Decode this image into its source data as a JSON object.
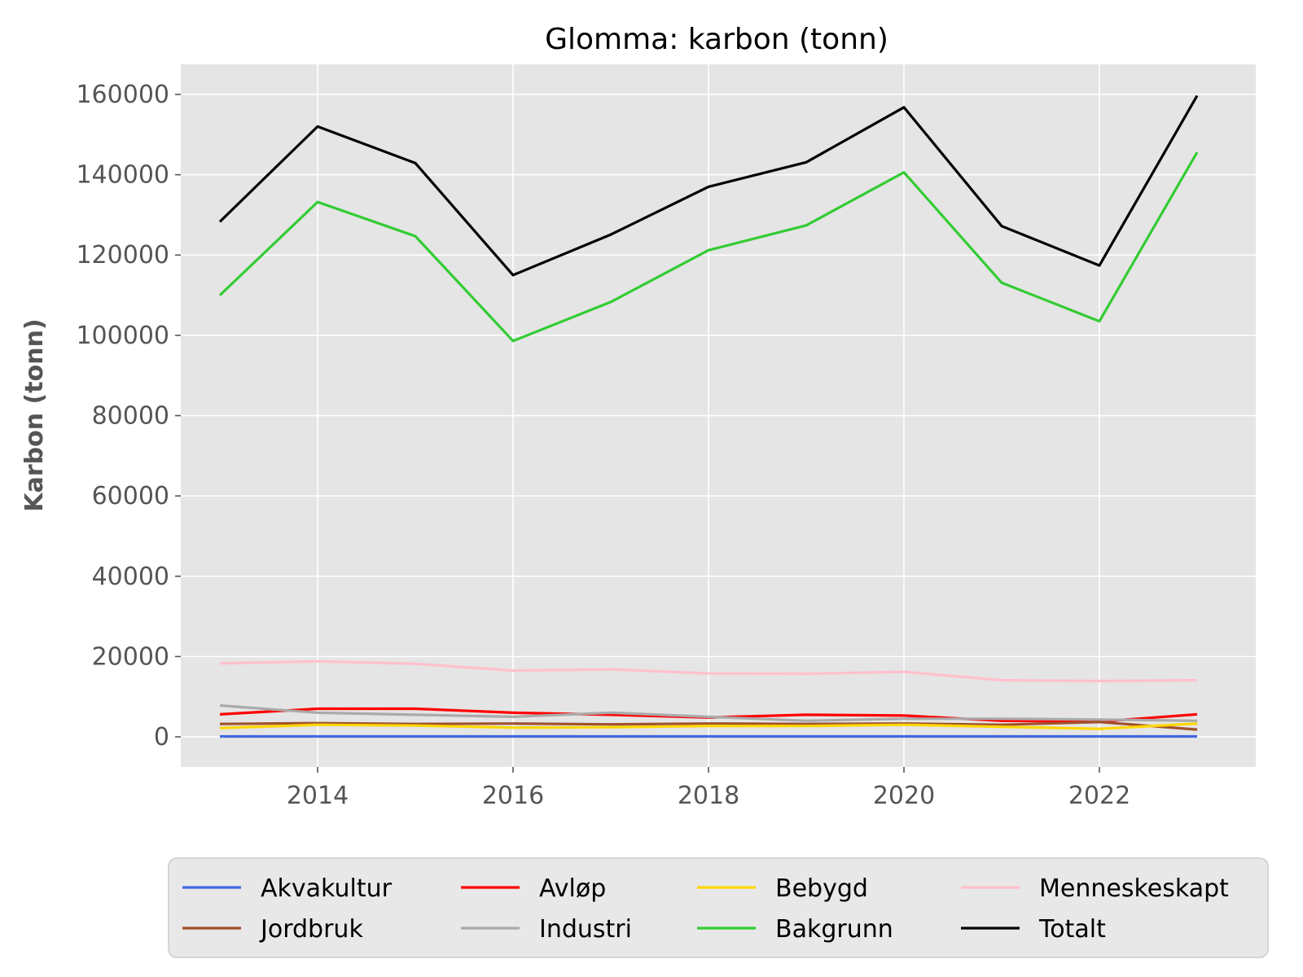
{
  "chart_data": {
    "type": "line",
    "title": "Glomma: karbon (tonn)",
    "xlabel": "",
    "ylabel": "Karbon (tonn)",
    "x": [
      2013,
      2014,
      2015,
      2016,
      2017,
      2018,
      2019,
      2020,
      2021,
      2022,
      2023
    ],
    "xlim": [
      2012.6,
      2023.6
    ],
    "ylim": [
      -7500,
      167500
    ],
    "xticks": [
      2014,
      2016,
      2018,
      2020,
      2022
    ],
    "yticks": [
      0,
      20000,
      40000,
      60000,
      80000,
      100000,
      120000,
      140000,
      160000
    ],
    "grid": true,
    "legend_position": "bottom",
    "legend_columns": 4,
    "series": [
      {
        "name": "Akvakultur",
        "color": "#4169e1",
        "values": [
          100,
          100,
          100,
          100,
          100,
          100,
          100,
          100,
          100,
          100,
          100
        ]
      },
      {
        "name": "Jordbruk",
        "color": "#a0522d",
        "values": [
          3200,
          3400,
          3200,
          3300,
          3100,
          3300,
          3200,
          3300,
          3000,
          3700,
          1800
        ]
      },
      {
        "name": "Avløp",
        "color": "#ff0000",
        "values": [
          5600,
          7000,
          7000,
          6000,
          5500,
          4800,
          5500,
          5300,
          4000,
          3800,
          5600
        ]
      },
      {
        "name": "Industri",
        "color": "#aaaaaa",
        "values": [
          7800,
          6000,
          5500,
          5000,
          6000,
          5000,
          4000,
          4500,
          4500,
          4300,
          4000
        ]
      },
      {
        "name": "Bebygd",
        "color": "#ffd700",
        "values": [
          2200,
          3000,
          2800,
          2300,
          2400,
          2700,
          2700,
          3000,
          2500,
          2000,
          3300
        ]
      },
      {
        "name": "Bakgrunn",
        "color": "#33cc33",
        "values": [
          110000,
          133200,
          124700,
          98600,
          108300,
          121200,
          127400,
          140600,
          113100,
          103500,
          145600
        ]
      },
      {
        "name": "Menneskeskapt",
        "color": "#ffc0cb",
        "values": [
          18300,
          18800,
          18200,
          16500,
          16800,
          15800,
          15700,
          16200,
          14100,
          13900,
          14100
        ]
      },
      {
        "name": "Totalt",
        "color": "#000000",
        "values": [
          128300,
          152000,
          142900,
          115000,
          125100,
          137000,
          143100,
          156800,
          127200,
          117400,
          159700
        ]
      }
    ]
  }
}
